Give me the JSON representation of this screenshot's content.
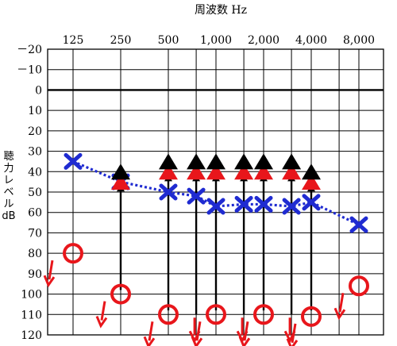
{
  "chart_data": {
    "type": "audiogram",
    "title": "周波数 Hz",
    "ylabel": [
      "聴",
      "力",
      "レ",
      "ベ",
      "ル",
      "dB"
    ],
    "x_ticks": [
      {
        "label": "125",
        "freq": 125
      },
      {
        "label": "250",
        "freq": 250
      },
      {
        "label": "500",
        "freq": 500
      },
      {
        "label": "1,000",
        "freq": 1000
      },
      {
        "label": "2,000",
        "freq": 2000
      },
      {
        "label": "4,000",
        "freq": 4000
      },
      {
        "label": "8,000",
        "freq": 8000
      }
    ],
    "x_grid_freqs": [
      125,
      250,
      500,
      750,
      1000,
      1500,
      2000,
      3000,
      4000,
      6000,
      8000
    ],
    "ylim": [
      -20,
      120
    ],
    "y_ticks": [
      {
        "label": "－20",
        "value": -20
      },
      {
        "label": "－10",
        "value": -10
      },
      {
        "label": "0",
        "value": 0
      },
      {
        "label": "10",
        "value": 10
      },
      {
        "label": "20",
        "value": 20
      },
      {
        "label": "30",
        "value": 30
      },
      {
        "label": "40",
        "value": 40
      },
      {
        "label": "50",
        "value": 50
      },
      {
        "label": "60",
        "value": 60
      },
      {
        "label": "70",
        "value": 70
      },
      {
        "label": "80",
        "value": 80
      },
      {
        "label": "90",
        "value": 90
      },
      {
        "label": "100",
        "value": 100
      },
      {
        "label": "110",
        "value": 110
      },
      {
        "label": "120",
        "value": 120
      }
    ],
    "series": [
      {
        "symbol": "x",
        "color": "#1f2bd1",
        "connected": true,
        "points": [
          {
            "freq": 125,
            "db": 35
          },
          {
            "freq": 250,
            "db": 45
          },
          {
            "freq": 500,
            "db": 50
          },
          {
            "freq": 750,
            "db": 52
          },
          {
            "freq": 1000,
            "db": 57
          },
          {
            "freq": 1500,
            "db": 56
          },
          {
            "freq": 2000,
            "db": 56
          },
          {
            "freq": 3000,
            "db": 57
          },
          {
            "freq": 4000,
            "db": 55
          },
          {
            "freq": 8000,
            "db": 66
          }
        ]
      },
      {
        "symbol": "circle",
        "color": "#e8161b",
        "connected": false,
        "scale_out": true,
        "points": [
          {
            "freq": 125,
            "db": 80
          },
          {
            "freq": 250,
            "db": 100
          },
          {
            "freq": 500,
            "db": 110
          },
          {
            "freq": 1000,
            "db": 110
          },
          {
            "freq": 2000,
            "db": 110
          },
          {
            "freq": 4000,
            "db": 111
          },
          {
            "freq": 8000,
            "db": 96
          }
        ]
      },
      {
        "symbol": "triangle",
        "color": "#e8161b",
        "connected": false,
        "points": [
          {
            "freq": 250,
            "db": 45
          },
          {
            "freq": 500,
            "db": 40
          },
          {
            "freq": 750,
            "db": 40
          },
          {
            "freq": 1000,
            "db": 40
          },
          {
            "freq": 1500,
            "db": 40
          },
          {
            "freq": 2000,
            "db": 40
          },
          {
            "freq": 3000,
            "db": 40
          },
          {
            "freq": 4000,
            "db": 45
          }
        ]
      },
      {
        "symbol": "triangle",
        "color": "#000000",
        "connected": false,
        "scale_out_up": true,
        "points": [
          {
            "freq": 250,
            "db": 40
          },
          {
            "freq": 500,
            "db": 35
          },
          {
            "freq": 750,
            "db": 35
          },
          {
            "freq": 1000,
            "db": 35
          },
          {
            "freq": 1500,
            "db": 35
          },
          {
            "freq": 2000,
            "db": 35
          },
          {
            "freq": 3000,
            "db": 35
          },
          {
            "freq": 4000,
            "db": 40
          }
        ]
      }
    ],
    "masking_arrows_from_db": [
      {
        "freq": 250,
        "from_db": 98
      },
      {
        "freq": 500,
        "from_db": 108
      },
      {
        "freq": 750,
        "from_db": 110
      },
      {
        "freq": 1000,
        "from_db": 108
      },
      {
        "freq": 1500,
        "from_db": 110
      },
      {
        "freq": 2000,
        "from_db": 108
      },
      {
        "freq": 3000,
        "from_db": 110
      },
      {
        "freq": 4000,
        "from_db": 108
      }
    ],
    "colors": {
      "air_bone_red": "#e8161b",
      "air_blue": "#1f2bd1",
      "grid": "#000000"
    }
  }
}
